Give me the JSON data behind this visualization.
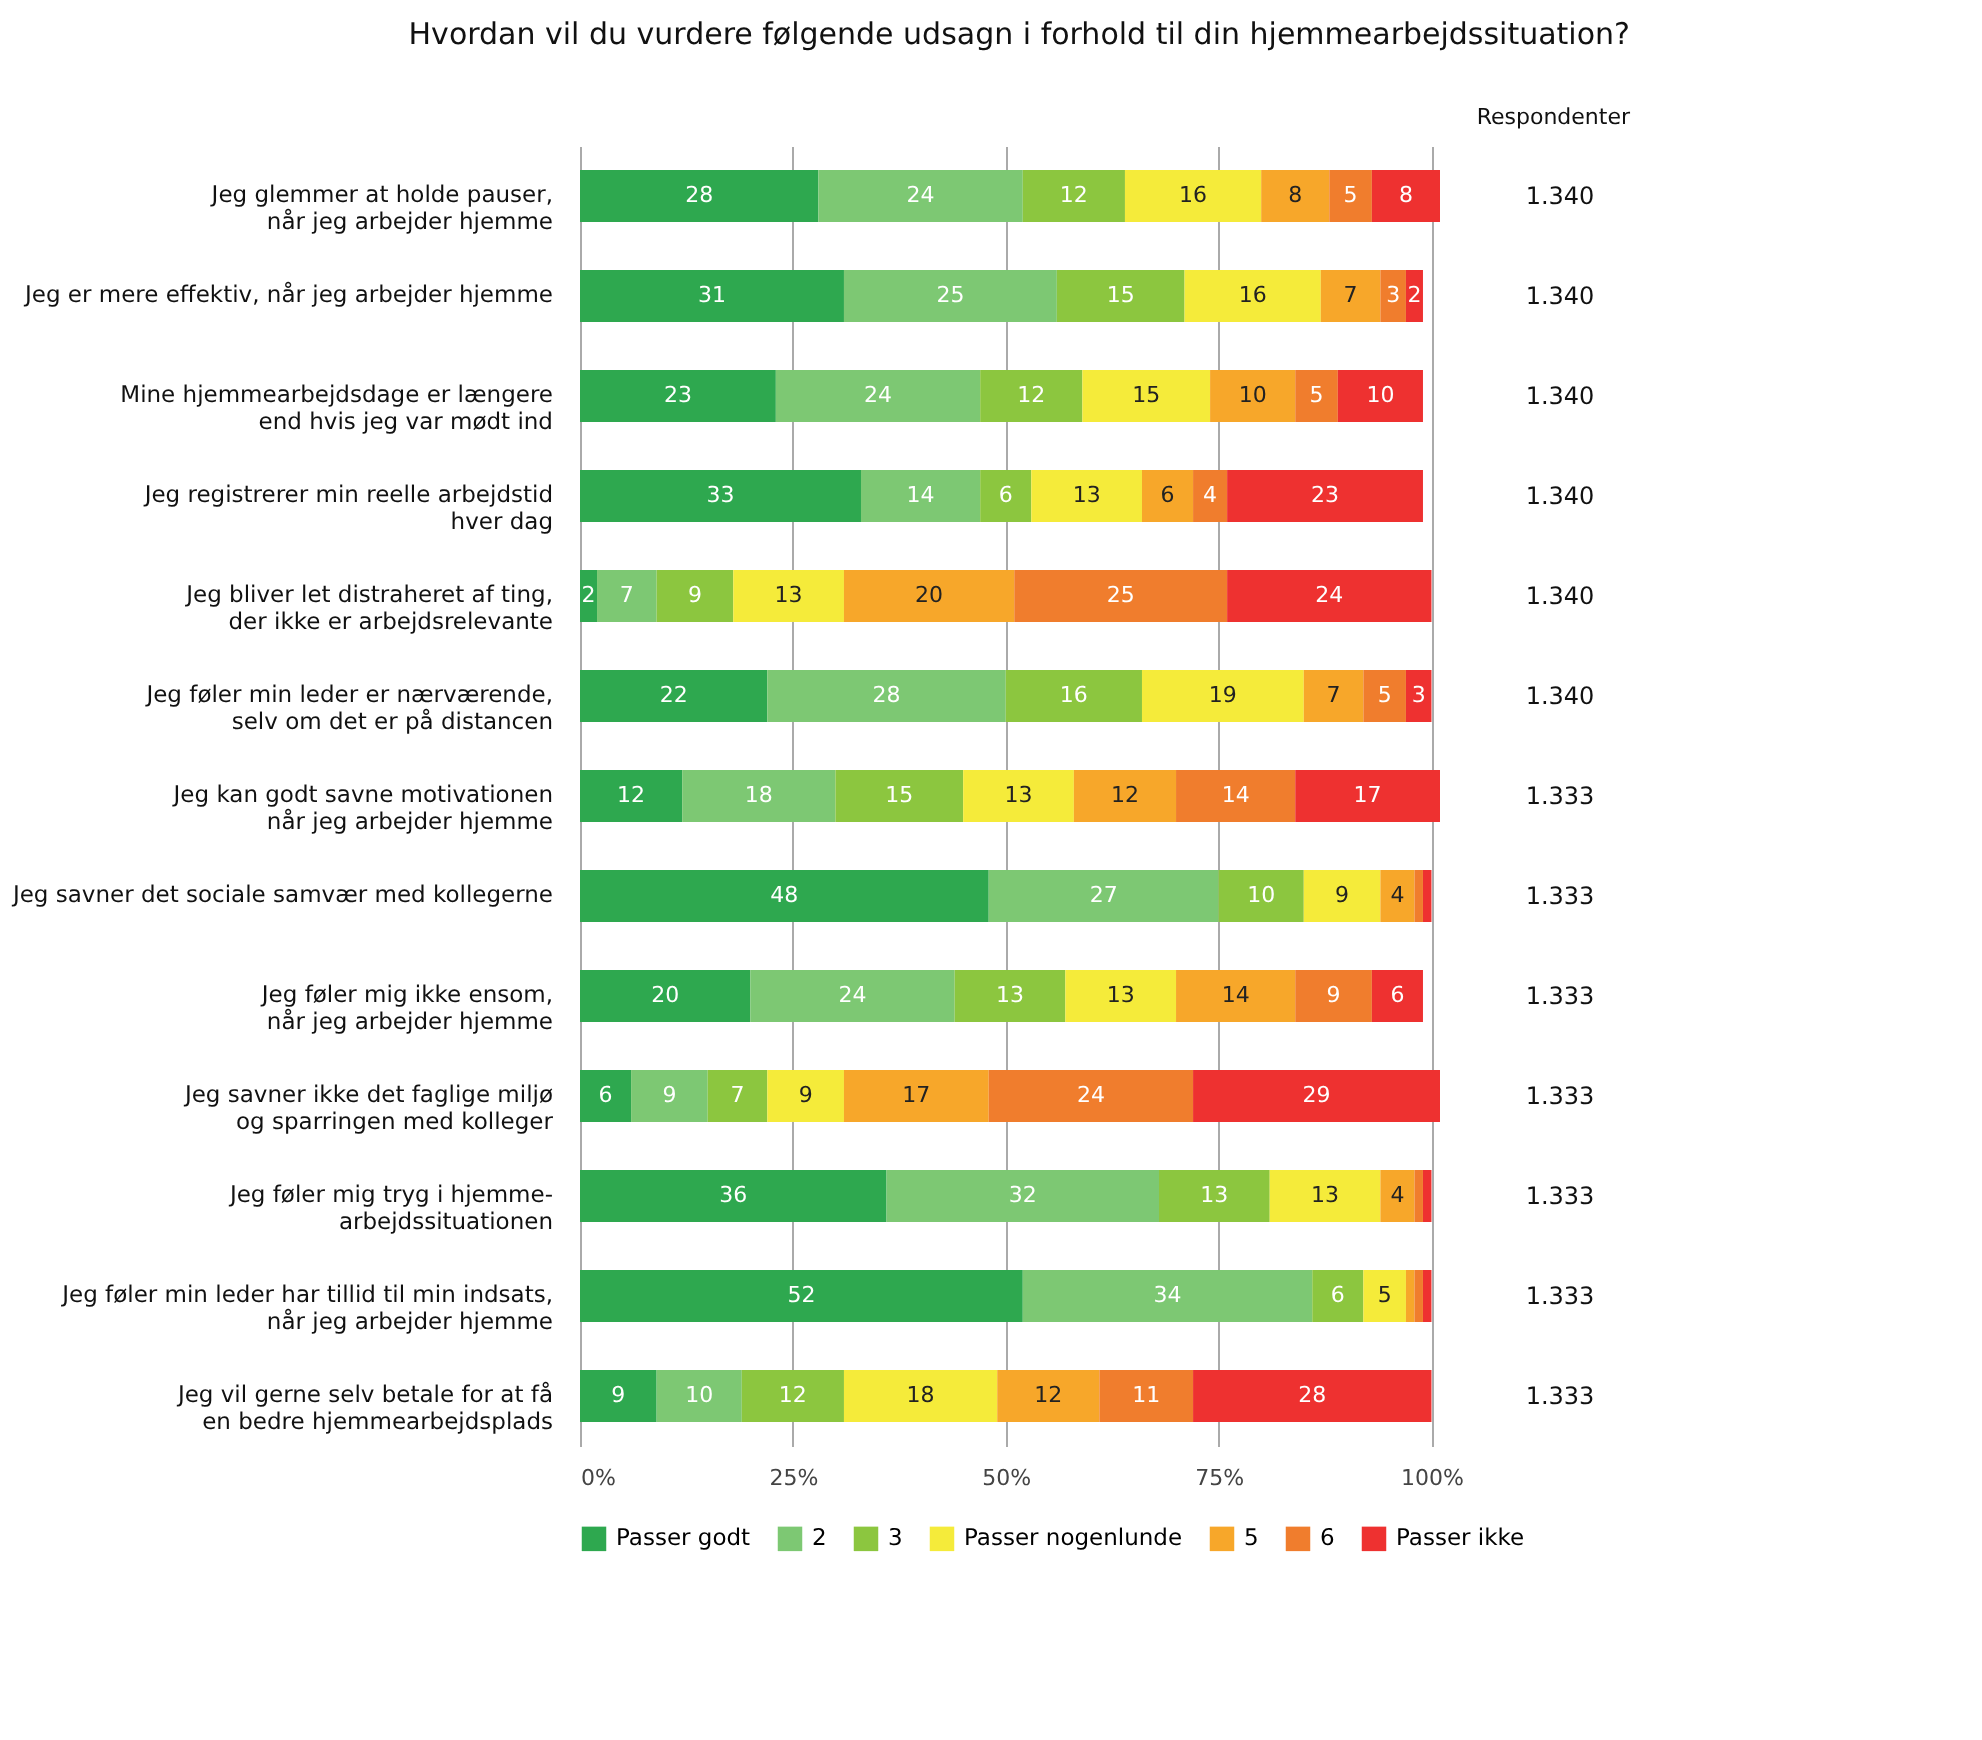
{
  "chart_data": {
    "type": "bar",
    "orientation": "horizontal",
    "stacked": true,
    "title": "Hvordan vil du vurdere følgende udsagn i forhold til din hjemmearbejdssituation?",
    "categories": [
      "Jeg glemmer at holde pauser,\nnår jeg arbejder hjemme",
      "Jeg er mere effektiv, når jeg arbejder hjemme",
      "Mine hjemmearbejdsdage er længere\nend hvis jeg var mødt ind",
      "Jeg registrerer min reelle arbejdstid\nhver dag",
      "Jeg bliver let distraheret af ting,\nder ikke er arbejdsrelevante",
      "Jeg føler min leder er nærværende,\nselv om det er på distancen",
      "Jeg kan godt savne motivationen\nnår jeg arbejder hjemme",
      "Jeg savner det sociale samvær med kollegerne",
      "Jeg føler mig ikke ensom,\nnår jeg arbejder hjemme",
      "Jeg savner ikke det faglige miljø\nog sparringen med kolleger",
      "Jeg føler mig tryg i hjemme-\narbejdssituationen",
      "Jeg føler min leder har tillid til min indsats,\nnår jeg arbejder hjemme",
      "Jeg vil gerne selv betale for at få\nen bedre hjemmearbejdsplads"
    ],
    "series": [
      {
        "name": "Passer godt",
        "color": "#2ea84f",
        "values": [
          28,
          31,
          23,
          33,
          2,
          22,
          12,
          48,
          20,
          6,
          36,
          52,
          9
        ]
      },
      {
        "name": "2",
        "color": "#7dc873",
        "values": [
          24,
          25,
          24,
          14,
          7,
          28,
          18,
          27,
          24,
          9,
          32,
          34,
          10
        ]
      },
      {
        "name": "3",
        "color": "#8cc63f",
        "values": [
          12,
          15,
          12,
          6,
          9,
          16,
          15,
          10,
          13,
          7,
          13,
          6,
          12
        ]
      },
      {
        "name": "Passer nogenlunde",
        "color": "#f5eb3a",
        "values": [
          16,
          16,
          15,
          13,
          13,
          19,
          13,
          9,
          13,
          9,
          13,
          5,
          18
        ]
      },
      {
        "name": "5",
        "color": "#f7a72a",
        "values": [
          8,
          7,
          10,
          6,
          20,
          7,
          12,
          4,
          14,
          17,
          4,
          1,
          12
        ],
        "value_labels": [
          "8",
          "7",
          "10",
          "6",
          "20",
          "7",
          "12",
          "4",
          "14",
          "17",
          "4",
          null,
          "12"
        ]
      },
      {
        "name": "6",
        "color": "#f07d2d",
        "values": [
          5,
          3,
          5,
          4,
          25,
          5,
          14,
          1,
          9,
          24,
          1,
          1,
          11
        ],
        "value_labels": [
          "5",
          "3",
          "5",
          "4",
          "25",
          "5",
          "14",
          null,
          "9",
          "24",
          null,
          null,
          "11"
        ]
      },
      {
        "name": "Passer ikke",
        "color": "#ee3130",
        "values": [
          8,
          2,
          10,
          23,
          24,
          3,
          17,
          1,
          6,
          29,
          1,
          1,
          28
        ],
        "value_labels": [
          "8",
          "2",
          "10",
          "23",
          "24",
          "3",
          "17",
          null,
          "6",
          "29",
          null,
          null,
          "28"
        ]
      }
    ],
    "data_labels": true,
    "xlim": [
      0,
      101
    ],
    "xticks": [
      {
        "value": 0,
        "label": "0%"
      },
      {
        "value": 25,
        "label": "25%"
      },
      {
        "value": 50,
        "label": "50%"
      },
      {
        "value": 75,
        "label": "75%"
      },
      {
        "value": 100,
        "label": "100%"
      }
    ],
    "grid": "x",
    "legend": "bottom",
    "annotations": [
      "Respondenter",
      "1.340",
      "1.340",
      "1.340",
      "1.340",
      "1.340",
      "1.340",
      "1.333",
      "1.333",
      "1.333",
      "1.333",
      "1.333",
      "1.333",
      "1.333"
    ]
  }
}
